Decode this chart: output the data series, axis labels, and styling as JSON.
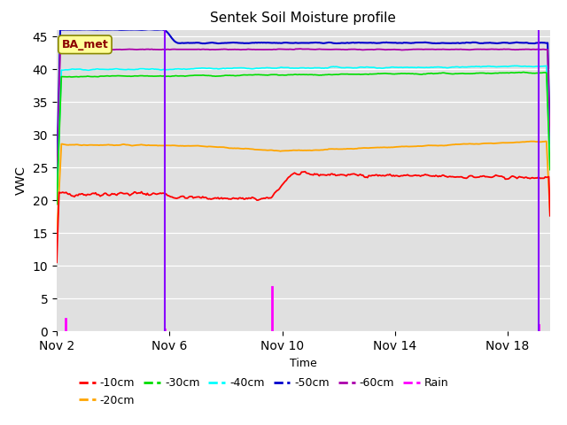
{
  "title": "Sentek Soil Moisture profile",
  "xlabel": "Time",
  "ylabel": "VWC",
  "ylim": [
    0,
    46
  ],
  "yticks": [
    0,
    5,
    10,
    15,
    20,
    25,
    30,
    35,
    40,
    45
  ],
  "xtick_labels": [
    "Nov 2",
    "Nov 6",
    "Nov 10",
    "Nov 14",
    "Nov 18"
  ],
  "xtick_positions": [
    2,
    6,
    10,
    14,
    18
  ],
  "legend_labels": [
    "-10cm",
    "-20cm",
    "-30cm",
    "-40cm",
    "-50cm",
    "-60cm",
    "Rain"
  ],
  "legend_colors": [
    "#ff0000",
    "#ffa500",
    "#00dd00",
    "#00ffff",
    "#0000cc",
    "#aa00aa",
    "#ff00ff"
  ],
  "annotation_label": "BA_met",
  "bg_color": "#e0e0e0",
  "series": {
    "cm10": {
      "color": "#ff0000"
    },
    "cm20": {
      "color": "#ffa500"
    },
    "cm30": {
      "color": "#00dd00"
    },
    "cm40": {
      "color": "#00ffff"
    },
    "cm50": {
      "color": "#0000cc"
    },
    "cm60": {
      "color": "#aa00aa"
    }
  },
  "rain_events": [
    {
      "day": 2.3,
      "amount": 2.0
    },
    {
      "day": 5.85,
      "amount": 0.3
    },
    {
      "day": 9.65,
      "amount": 6.8
    },
    {
      "day": 19.1,
      "amount": 1.0
    }
  ],
  "vertical_lines": [
    5.85,
    19.1
  ],
  "vline_color": "#8800ff",
  "xlim": [
    2,
    19.5
  ]
}
